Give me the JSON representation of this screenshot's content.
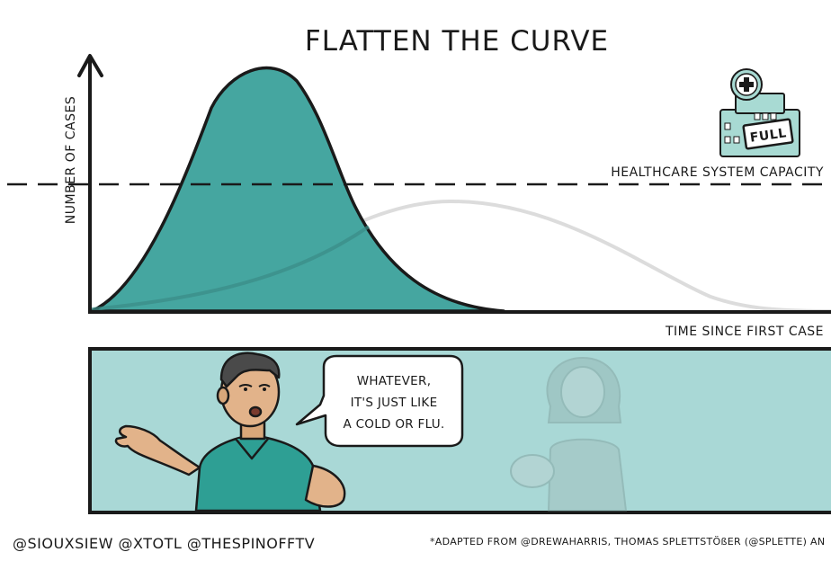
{
  "title": "FLATTEN THE CURVE",
  "y_axis_label": "NUMBER OF CASES",
  "x_axis_label": "TIME SINCE FIRST CASE",
  "capacity_label": "HEALTHCARE SYSTEM CAPACITY",
  "hospital_sign": "FULL",
  "speech_bubble": {
    "line1": "WHATEVER,",
    "line2": "IT'S JUST LIKE",
    "line3": "A COLD OR FLU."
  },
  "credits_left": "@SIOUXSIEW @XTOTL @THESPINOFFTV",
  "credits_right": "*ADAPTED FROM @DREWAHARRIS, THOMAS SPLETTSTÖßER (@SPLETTE) AN",
  "colors": {
    "teal_curve": "#45a6a0",
    "panel_bg": "#a9d8d6",
    "ink": "#1a1a1a",
    "flat_curve": "#dcdcdc",
    "hospital": "#a8dad3"
  }
}
